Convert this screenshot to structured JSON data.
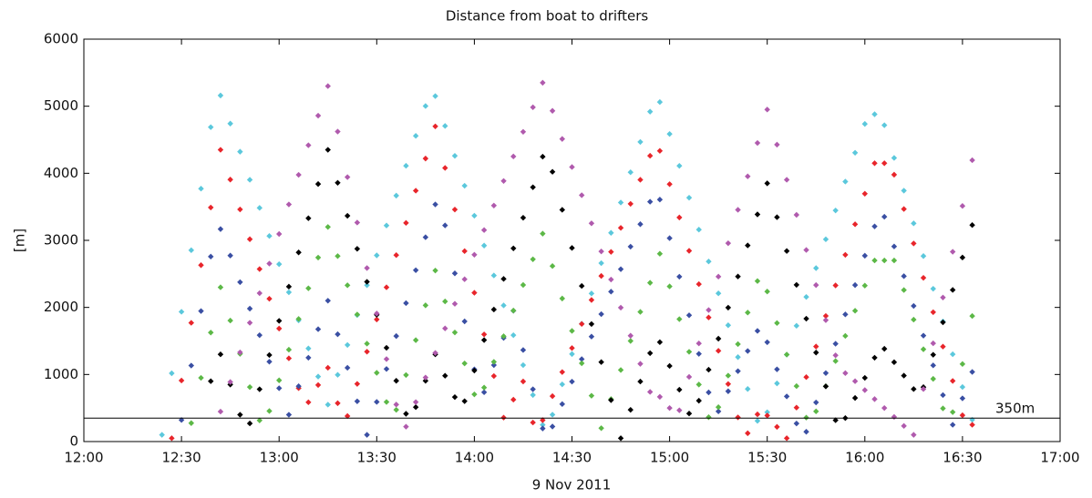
{
  "chart_data": {
    "type": "scatter",
    "title": "Distance from boat to drifters",
    "y_label": "[m]",
    "x_label": "9 Nov 2011",
    "x": [
      "12:24",
      "12:27",
      "12:30",
      "12:33",
      "12:36",
      "12:39",
      "12:42",
      "12:45",
      "12:48",
      "12:51",
      "12:54",
      "12:57",
      "13:00",
      "13:03",
      "13:06",
      "13:09",
      "13:12",
      "13:15",
      "13:18",
      "13:21",
      "13:24",
      "13:27",
      "13:30",
      "13:33",
      "13:36",
      "13:39",
      "13:42",
      "13:45",
      "13:48",
      "13:51",
      "13:54",
      "13:57",
      "14:00",
      "14:03",
      "14:06",
      "14:09",
      "14:12",
      "14:15",
      "14:18",
      "14:21",
      "14:24",
      "14:27",
      "14:30",
      "14:33",
      "14:36",
      "14:39",
      "14:42",
      "14:45",
      "14:48",
      "14:51",
      "14:54",
      "14:57",
      "15:00",
      "15:03",
      "15:06",
      "15:09",
      "15:12",
      "15:15",
      "15:18",
      "15:21",
      "15:24",
      "15:27",
      "15:30",
      "15:33",
      "15:36",
      "15:39",
      "15:42",
      "15:45",
      "15:48",
      "15:51",
      "15:54",
      "15:57",
      "16:00",
      "16:03",
      "16:06",
      "16:09",
      "16:12",
      "16:15",
      "16:18",
      "16:21",
      "16:24",
      "16:27",
      "16:30",
      "16:33",
      "16:36"
    ],
    "series": [
      {
        "color": "#5bc8dc",
        "values": [
          100,
          1018,
          1935,
          2853,
          3771,
          4688,
          5160,
          4741,
          4322,
          3903,
          3484,
          3065,
          2645,
          2226,
          1807,
          1388,
          969,
          550,
          995,
          1440,
          1886,
          2331,
          2776,
          3221,
          3667,
          4112,
          4558,
          5003,
          5151,
          4706,
          4260,
          3814,
          3368,
          2922,
          2476,
          2030,
          1586,
          1140,
          694,
          249,
          401,
          853,
          1305,
          1757,
          2208,
          2660,
          3112,
          3564,
          4015,
          4467,
          4919,
          5062,
          4586,
          4111,
          3636,
          3160,
          2685,
          2210,
          1734,
          1259,
          784,
          308,
          437,
          867,
          1296,
          1726,
          2156,
          2586,
          3016,
          3446,
          3876,
          4306,
          4736,
          4880,
          4717,
          4229,
          3741,
          3253,
          2766,
          2278,
          1790,
          1302,
          813,
          325,
          null
        ]
      },
      {
        "color": "#e8252b",
        "values": [
          null,
          50,
          910,
          1770,
          2630,
          3490,
          4350,
          3906,
          3461,
          3017,
          2572,
          2129,
          1685,
          1241,
          796,
          586,
          843,
          1100,
          572,
          380,
          860,
          1340,
          1820,
          2300,
          2780,
          3260,
          3740,
          4220,
          4700,
          4080,
          3459,
          2839,
          2218,
          1598,
          977,
          357,
          625,
          896,
          284,
          319,
          677,
          1036,
          1394,
          1753,
          2111,
          2469,
          2828,
          3186,
          3544,
          3903,
          4261,
          4334,
          3838,
          3341,
          2844,
          2347,
          1850,
          1353,
          858,
          361,
          124,
          406,
          388,
          219,
          50,
          506,
          961,
          1417,
          1873,
          2328,
          2784,
          3240,
          3695,
          4150,
          4150,
          3979,
          3467,
          2954,
          2441,
          1929,
          1416,
          904,
          392,
          250,
          null
        ]
      },
      {
        "color": "#3a4fa3",
        "values": [
          null,
          null,
          321,
          1133,
          1946,
          2758,
          3168,
          2773,
          2377,
          1982,
          1586,
          1191,
          795,
          400,
          825,
          1250,
          1675,
          2100,
          1600,
          1100,
          600,
          100,
          591,
          1082,
          1573,
          2064,
          2555,
          3046,
          3536,
          3223,
          2508,
          1792,
          1077,
          735,
          1140,
          1545,
          1950,
          1365,
          780,
          195,
          224,
          559,
          894,
          1229,
          1565,
          1900,
          2235,
          2570,
          2906,
          3241,
          3576,
          3608,
          3033,
          2458,
          1883,
          1308,
          733,
          450,
          750,
          1050,
          1350,
          1650,
          1481,
          1077,
          673,
          269,
          146,
          583,
          1021,
          1458,
          1896,
          2333,
          2771,
          3208,
          3352,
          2909,
          2466,
          2022,
          1579,
          1136,
          693,
          250,
          644,
          1038,
          null
        ]
      },
      {
        "color": "#5cb847",
        "values": [
          null,
          null,
          null,
          275,
          950,
          1625,
          2300,
          1804,
          1308,
          812,
          315,
          455,
          913,
          1370,
          1828,
          2285,
          2743,
          3200,
          2765,
          2330,
          1895,
          1460,
          1025,
          590,
          473,
          992,
          1512,
          2031,
          2550,
          2089,
          1627,
          1165,
          704,
          805,
          1188,
          1570,
          1953,
          2335,
          2718,
          3100,
          2617,
          2133,
          1650,
          1167,
          683,
          200,
          633,
          1067,
          1500,
          1933,
          2367,
          2800,
          2313,
          1825,
          1338,
          850,
          363,
          513,
          983,
          1453,
          1923,
          2393,
          2237,
          1767,
          1297,
          827,
          357,
          450,
          825,
          1200,
          1575,
          1950,
          2325,
          2700,
          2700,
          2700,
          2259,
          1818,
          1376,
          935,
          494,
          439,
          1156,
          1872,
          null
        ]
      },
      {
        "color": "#000000",
        "values": [
          null,
          null,
          null,
          null,
          null,
          900,
          1300,
          850,
          400,
          270,
          780,
          1290,
          1800,
          2310,
          2820,
          3330,
          3840,
          4350,
          3858,
          3366,
          2874,
          2382,
          1890,
          1398,
          906,
          414,
          513,
          906,
          1300,
          981,
          663,
          602,
          1058,
          1513,
          1969,
          2425,
          2881,
          3337,
          3792,
          4248,
          4022,
          3455,
          2887,
          2320,
          1752,
          1185,
          617,
          50,
          473,
          895,
          1318,
          1482,
          1127,
          773,
          418,
          609,
          1071,
          1534,
          1997,
          2461,
          2924,
          3387,
          3850,
          3345,
          2841,
          2336,
          1832,
          1327,
          823,
          318,
          350,
          650,
          950,
          1250,
          1383,
          1183,
          983,
          783,
          811,
          1294,
          1778,
          2261,
          2744,
          3228,
          null
        ]
      },
      {
        "color": "#b05aad",
        "values": [
          null,
          null,
          null,
          null,
          null,
          null,
          447,
          888,
          1330,
          1771,
          2212,
          2653,
          3095,
          3536,
          3977,
          4418,
          4859,
          5300,
          4622,
          3943,
          3265,
          2587,
          1909,
          1230,
          552,
          222,
          588,
          955,
          1321,
          1687,
          2054,
          2420,
          2786,
          3153,
          3519,
          3885,
          4251,
          4618,
          4984,
          5350,
          4931,
          4512,
          4093,
          3673,
          3254,
          2835,
          2416,
          1997,
          1578,
          1159,
          740,
          667,
          500,
          466,
          964,
          1463,
          1961,
          2459,
          2957,
          3455,
          3954,
          4452,
          4950,
          4427,
          3903,
          3380,
          2856,
          2333,
          1810,
          1286,
          1020,
          900,
          767,
          633,
          500,
          367,
          233,
          100,
          783,
          1465,
          2148,
          2830,
          3513,
          4195,
          null
        ]
      }
    ],
    "xlim": [
      "12:00",
      "17:00"
    ],
    "xticks": [
      "12:00",
      "12:30",
      "13:00",
      "13:30",
      "14:00",
      "14:30",
      "15:00",
      "15:30",
      "16:00",
      "16:30",
      "17:00"
    ],
    "ylim": [
      0,
      6000
    ],
    "yticks": [
      0,
      1000,
      2000,
      3000,
      4000,
      5000,
      6000
    ],
    "reference_line": {
      "value": 350,
      "label": "350m"
    }
  }
}
